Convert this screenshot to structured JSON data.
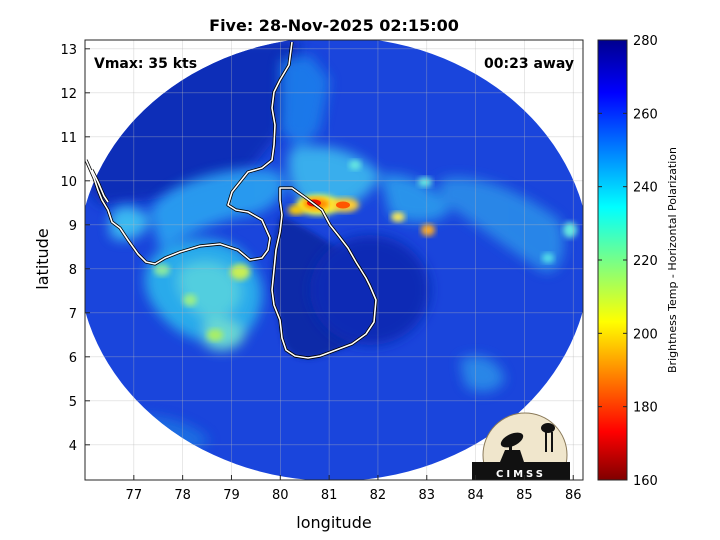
{
  "title": "Five: 28-Nov-2025 02:15:00",
  "vmax_label": "Vmax: 35 kts",
  "away_label": "00:23 away",
  "xlabel": "longitude",
  "ylabel": "latitude",
  "colorbar_label": "Brightness Temp - Horizontal Polarization",
  "logo_text": "CIMSS",
  "colors": {
    "background_disc": "#1540d8",
    "cold_cloud": "#2aa8f0",
    "outside": "#ffffff",
    "coast": "#ffffff"
  },
  "chart_data": {
    "type": "heatmap",
    "title": "Five: 28-Nov-2025 02:15:00",
    "xlabel": "longitude",
    "ylabel": "latitude",
    "xlim": [
      76,
      86.2
    ],
    "ylim": [
      3.2,
      13.2
    ],
    "x_ticks": [
      77,
      78,
      79,
      80,
      81,
      82,
      83,
      84,
      85,
      86
    ],
    "y_ticks": [
      4,
      5,
      6,
      7,
      8,
      9,
      10,
      11,
      12,
      13
    ],
    "grid": true,
    "colorbar": {
      "label": "Brightness Temp - Horizontal Polarization",
      "min": 160,
      "max": 280,
      "ticks": [
        160,
        180,
        200,
        220,
        240,
        260,
        280
      ],
      "colormap": "jet"
    },
    "swath_center": [
      81.1,
      8.15
    ],
    "swath_radius_deg": 5.0
  }
}
